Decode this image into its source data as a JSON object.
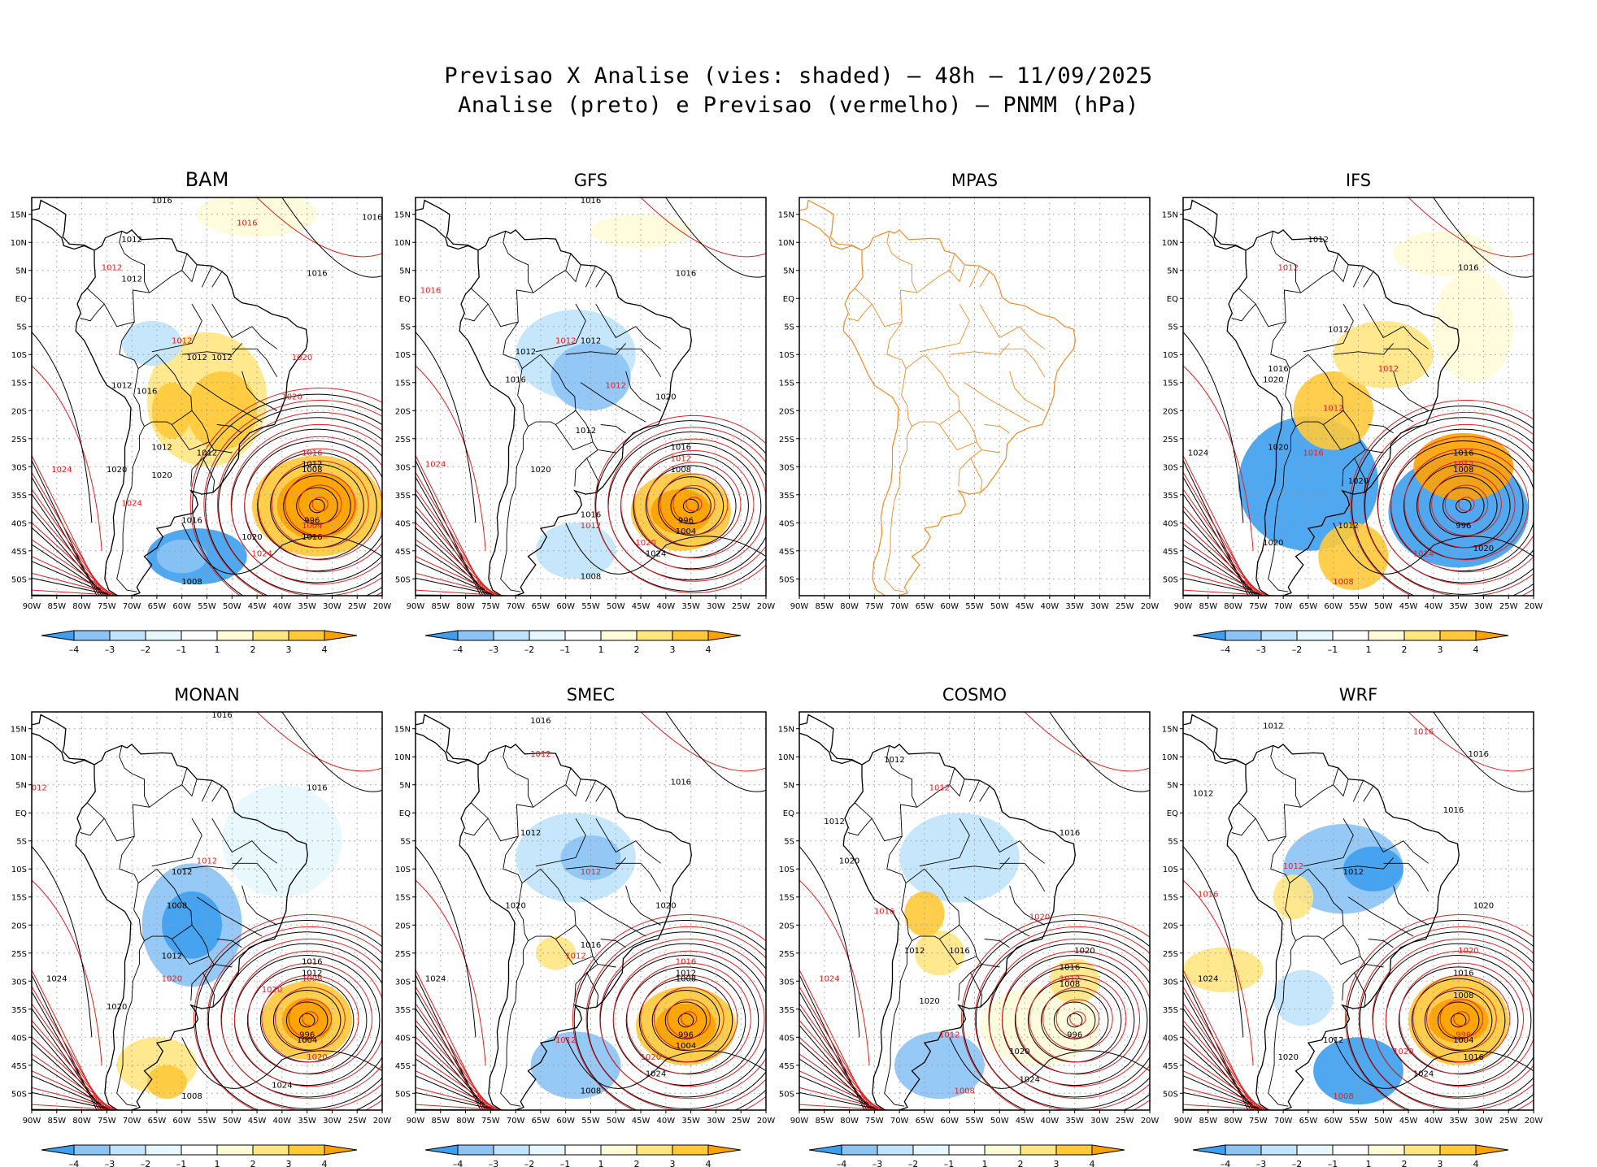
{
  "title": {
    "line1": "Previsao X Analise (vies: shaded) – 48h – 11/09/2025",
    "line2": "Analise (preto) e Previsao (vermelho) – PNMM (hPa)"
  },
  "colors": {
    "analysis_contour": "#000000",
    "forecast_contour": "#e02020",
    "map_outline_mpas": "#f08a24",
    "bias_neg4": "#3d9ff0",
    "bias_neg3": "#8cc3f5",
    "bias_neg2": "#c0e4fb",
    "bias_neg1": "#e6f7fd",
    "bias_pos1": "#fffbd9",
    "bias_pos2": "#ffe682",
    "bias_pos3": "#ffc93a",
    "bias_pos4": "#ffa200",
    "grid": "#9a9a9a"
  },
  "chart_data": {
    "type": "heatmap",
    "variable": "PNMM (hPa)",
    "lead_time": "48h",
    "date": "11/09/2025",
    "x_ticks": [
      "90W",
      "85W",
      "80W",
      "75W",
      "70W",
      "65W",
      "60W",
      "55W",
      "50W",
      "45W",
      "40W",
      "35W",
      "30W",
      "25W",
      "20W"
    ],
    "y_ticks": [
      "15N",
      "10N",
      "5N",
      "EQ",
      "5S",
      "10S",
      "15S",
      "20S",
      "25S",
      "30S",
      "35S",
      "40S",
      "45S",
      "50S"
    ],
    "xlim": [
      -90,
      -20
    ],
    "ylim": [
      -53,
      18
    ],
    "colorbar_labels": [
      "–4",
      "–3",
      "–2",
      "–1",
      "1",
      "2",
      "3",
      "4"
    ],
    "panels": [
      {
        "name": "BAM",
        "has_data": true,
        "colorbar": true,
        "contours": [
          {
            "label": "1016",
            "lon": -64,
            "lat": 17
          },
          {
            "label": "1016",
            "lon": -47,
            "lat": 13
          },
          {
            "label": "1016",
            "lon": -22,
            "lat": 14
          },
          {
            "label": "1012",
            "lon": -70,
            "lat": 10
          },
          {
            "label": "1012",
            "lon": -74,
            "lat": 5
          },
          {
            "label": "1012",
            "lon": -70,
            "lat": 3
          },
          {
            "label": "1016",
            "lon": -33,
            "lat": 4
          },
          {
            "label": "1012",
            "lon": -60,
            "lat": -8
          },
          {
            "label": "1012",
            "lon": -57,
            "lat": -11
          },
          {
            "label": "1012",
            "lon": -52,
            "lat": -11
          },
          {
            "label": "1020",
            "lon": -36,
            "lat": -11
          },
          {
            "label": "1012",
            "lon": -72,
            "lat": -16
          },
          {
            "label": "1016",
            "lon": -67,
            "lat": -17
          },
          {
            "label": "1020",
            "lon": -38,
            "lat": -18
          },
          {
            "label": "1012",
            "lon": -64,
            "lat": -27
          },
          {
            "label": "1012",
            "lon": -55,
            "lat": -28
          },
          {
            "label": "1016",
            "lon": -34,
            "lat": -28
          },
          {
            "label": "1012",
            "lon": -34,
            "lat": -30
          },
          {
            "label": "1008",
            "lon": -34,
            "lat": -31
          },
          {
            "label": "1024",
            "lon": -84,
            "lat": -31
          },
          {
            "label": "1020",
            "lon": -73,
            "lat": -31
          },
          {
            "label": "1020",
            "lon": -64,
            "lat": -32
          },
          {
            "label": "1024",
            "lon": -70,
            "lat": -37
          },
          {
            "label": "1016",
            "lon": -58,
            "lat": -40
          },
          {
            "label": "996",
            "lon": -34,
            "lat": -40
          },
          {
            "label": "1004",
            "lon": -34,
            "lat": -41
          },
          {
            "label": "1016",
            "lon": -34,
            "lat": -43
          },
          {
            "label": "1020",
            "lon": -46,
            "lat": -43
          },
          {
            "label": "1024",
            "lon": -44,
            "lat": -46
          },
          {
            "label": "1008",
            "lon": -58,
            "lat": -51
          }
        ]
      },
      {
        "name": "GFS",
        "has_data": true,
        "colorbar": true,
        "contours": [
          {
            "label": "1016",
            "lon": -55,
            "lat": 17
          },
          {
            "label": "1016",
            "lon": -87,
            "lat": 1
          },
          {
            "label": "1016",
            "lon": -36,
            "lat": 4
          },
          {
            "label": "1012",
            "lon": -68,
            "lat": -10
          },
          {
            "label": "1012",
            "lon": -60,
            "lat": -8
          },
          {
            "label": "1012",
            "lon": -55,
            "lat": -8
          },
          {
            "label": "1016",
            "lon": -70,
            "lat": -15
          },
          {
            "label": "1012",
            "lon": -50,
            "lat": -16
          },
          {
            "label": "1020",
            "lon": -40,
            "lat": -18
          },
          {
            "label": "1012",
            "lon": -56,
            "lat": -24
          },
          {
            "label": "1024",
            "lon": -86,
            "lat": -30
          },
          {
            "label": "1020",
            "lon": -65,
            "lat": -31
          },
          {
            "label": "1016",
            "lon": -37,
            "lat": -27
          },
          {
            "label": "1012",
            "lon": -37,
            "lat": -29
          },
          {
            "label": "1008",
            "lon": -37,
            "lat": -31
          },
          {
            "label": "1016",
            "lon": -55,
            "lat": -39
          },
          {
            "label": "1012",
            "lon": -55,
            "lat": -41
          },
          {
            "label": "996",
            "lon": -36,
            "lat": -40
          },
          {
            "label": "1004",
            "lon": -36,
            "lat": -42
          },
          {
            "label": "1020",
            "lon": -44,
            "lat": -44
          },
          {
            "label": "1024",
            "lon": -42,
            "lat": -46
          },
          {
            "label": "1008",
            "lon": -55,
            "lat": -50
          }
        ]
      },
      {
        "name": "MPAS",
        "has_data": false,
        "colorbar": false,
        "contours": []
      },
      {
        "name": "IFS",
        "has_data": true,
        "colorbar": true,
        "contours": [
          {
            "label": "1012",
            "lon": -63,
            "lat": 10
          },
          {
            "label": "1012",
            "lon": -69,
            "lat": 5
          },
          {
            "label": "1016",
            "lon": -33,
            "lat": 5
          },
          {
            "label": "1012",
            "lon": -59,
            "lat": -6
          },
          {
            "label": "1012",
            "lon": -49,
            "lat": -13
          },
          {
            "label": "1016",
            "lon": -71,
            "lat": -13
          },
          {
            "label": "1020",
            "lon": -72,
            "lat": -15
          },
          {
            "label": "1012",
            "lon": -60,
            "lat": -20
          },
          {
            "label": "1024",
            "lon": -87,
            "lat": -28
          },
          {
            "label": "1020",
            "lon": -71,
            "lat": -27
          },
          {
            "label": "1016",
            "lon": -64,
            "lat": -28
          },
          {
            "label": "1020",
            "lon": -55,
            "lat": -33
          },
          {
            "label": "1016",
            "lon": -34,
            "lat": -28
          },
          {
            "label": "1012",
            "lon": -34,
            "lat": -30
          },
          {
            "label": "1008",
            "lon": -34,
            "lat": -31
          },
          {
            "label": "996",
            "lon": -34,
            "lat": -41
          },
          {
            "label": "1008",
            "lon": -58,
            "lat": -51
          },
          {
            "label": "1012",
            "lon": -57,
            "lat": -41
          },
          {
            "label": "1020",
            "lon": -30,
            "lat": -45
          },
          {
            "label": "1024",
            "lon": -42,
            "lat": -46
          },
          {
            "label": "1020",
            "lon": -72,
            "lat": -44
          }
        ]
      },
      {
        "name": "MONAN",
        "has_data": true,
        "colorbar": true,
        "contours": [
          {
            "label": "1016",
            "lon": -52,
            "lat": 17
          },
          {
            "label": "1012",
            "lon": -89,
            "lat": 4
          },
          {
            "label": "1016",
            "lon": -33,
            "lat": 4
          },
          {
            "label": "1012",
            "lon": -60,
            "lat": -11
          },
          {
            "label": "1012",
            "lon": -55,
            "lat": -9
          },
          {
            "label": "1008",
            "lon": -61,
            "lat": -17
          },
          {
            "label": "1012",
            "lon": -62,
            "lat": -26
          },
          {
            "label": "1020",
            "lon": -62,
            "lat": -30
          },
          {
            "label": "1024",
            "lon": -85,
            "lat": -30
          },
          {
            "label": "1020",
            "lon": -73,
            "lat": -35
          },
          {
            "label": "1020",
            "lon": -42,
            "lat": -32
          },
          {
            "label": "1016",
            "lon": -34,
            "lat": -27
          },
          {
            "label": "1012",
            "lon": -34,
            "lat": -29
          },
          {
            "label": "1008",
            "lon": -34,
            "lat": -30
          },
          {
            "label": "996",
            "lon": -35,
            "lat": -40
          },
          {
            "label": "1004",
            "lon": -35,
            "lat": -41
          },
          {
            "label": "1020",
            "lon": -33,
            "lat": -44
          },
          {
            "label": "1024",
            "lon": -40,
            "lat": -49
          },
          {
            "label": "1008",
            "lon": -58,
            "lat": -51
          }
        ]
      },
      {
        "name": "SMEC",
        "has_data": true,
        "colorbar": true,
        "contours": [
          {
            "label": "1016",
            "lon": -65,
            "lat": 16
          },
          {
            "label": "1012",
            "lon": -65,
            "lat": 10
          },
          {
            "label": "1016",
            "lon": -37,
            "lat": 5
          },
          {
            "label": "1012",
            "lon": -67,
            "lat": -4
          },
          {
            "label": "1012",
            "lon": -55,
            "lat": -11
          },
          {
            "label": "1020",
            "lon": -70,
            "lat": -17
          },
          {
            "label": "1020",
            "lon": -40,
            "lat": -17
          },
          {
            "label": "1012",
            "lon": -58,
            "lat": -26
          },
          {
            "label": "1016",
            "lon": -55,
            "lat": -24
          },
          {
            "label": "1024",
            "lon": -86,
            "lat": -30
          },
          {
            "label": "1016",
            "lon": -36,
            "lat": -27
          },
          {
            "label": "1012",
            "lon": -36,
            "lat": -29
          },
          {
            "label": "1008",
            "lon": -36,
            "lat": -30
          },
          {
            "label": "1012",
            "lon": -60,
            "lat": -41
          },
          {
            "label": "996",
            "lon": -36,
            "lat": -40
          },
          {
            "label": "1004",
            "lon": -36,
            "lat": -42
          },
          {
            "label": "1020",
            "lon": -43,
            "lat": -44
          },
          {
            "label": "1024",
            "lon": -42,
            "lat": -47
          },
          {
            "label": "1008",
            "lon": -55,
            "lat": -50
          }
        ]
      },
      {
        "name": "COSMO",
        "has_data": true,
        "colorbar": true,
        "contours": [
          {
            "label": "1012",
            "lon": -71,
            "lat": 9
          },
          {
            "label": "1012",
            "lon": -62,
            "lat": 4
          },
          {
            "label": "1012",
            "lon": -83,
            "lat": -2
          },
          {
            "label": "1020",
            "lon": -80,
            "lat": -9
          },
          {
            "label": "1016",
            "lon": -73,
            "lat": -18
          },
          {
            "label": "1012",
            "lon": -67,
            "lat": -25
          },
          {
            "label": "1016",
            "lon": -58,
            "lat": -25
          },
          {
            "label": "1024",
            "lon": -84,
            "lat": -30
          },
          {
            "label": "1020",
            "lon": -64,
            "lat": -34
          },
          {
            "label": "1016",
            "lon": -36,
            "lat": -4
          },
          {
            "label": "1020",
            "lon": -42,
            "lat": -19
          },
          {
            "label": "1020",
            "lon": -33,
            "lat": -25
          },
          {
            "label": "1016",
            "lon": -36,
            "lat": -28
          },
          {
            "label": "1012",
            "lon": -36,
            "lat": -30
          },
          {
            "label": "1008",
            "lon": -36,
            "lat": -31
          },
          {
            "label": "996",
            "lon": -35,
            "lat": -40
          },
          {
            "label": "1012",
            "lon": -60,
            "lat": -40
          },
          {
            "label": "1020",
            "lon": -46,
            "lat": -43
          },
          {
            "label": "1024",
            "lon": -44,
            "lat": -48
          },
          {
            "label": "1008",
            "lon": -57,
            "lat": -50
          }
        ]
      },
      {
        "name": "WRF",
        "has_data": true,
        "colorbar": true,
        "contours": [
          {
            "label": "1012",
            "lon": -72,
            "lat": 15
          },
          {
            "label": "1016",
            "lon": -42,
            "lat": 14
          },
          {
            "label": "1016",
            "lon": -31,
            "lat": 10
          },
          {
            "label": "1012",
            "lon": -86,
            "lat": 3
          },
          {
            "label": "1012",
            "lon": -68,
            "lat": -10
          },
          {
            "label": "1012",
            "lon": -56,
            "lat": -11
          },
          {
            "label": "1016",
            "lon": -36,
            "lat": 0
          },
          {
            "label": "1016",
            "lon": -85,
            "lat": -15
          },
          {
            "label": "1020",
            "lon": -30,
            "lat": -17
          },
          {
            "label": "1024",
            "lon": -85,
            "lat": -30
          },
          {
            "label": "1020",
            "lon": -33,
            "lat": -25
          },
          {
            "label": "1016",
            "lon": -34,
            "lat": -29
          },
          {
            "label": "1008",
            "lon": -34,
            "lat": -33
          },
          {
            "label": "996",
            "lon": -34,
            "lat": -40
          },
          {
            "label": "1004",
            "lon": -34,
            "lat": -41
          },
          {
            "label": "1016",
            "lon": -32,
            "lat": -44
          },
          {
            "label": "1020",
            "lon": -46,
            "lat": -43
          },
          {
            "label": "1024",
            "lon": -42,
            "lat": -47
          },
          {
            "label": "1012",
            "lon": -60,
            "lat": -41
          },
          {
            "label": "1008",
            "lon": -58,
            "lat": -51
          },
          {
            "label": "1020",
            "lon": -69,
            "lat": -44
          }
        ]
      }
    ]
  }
}
